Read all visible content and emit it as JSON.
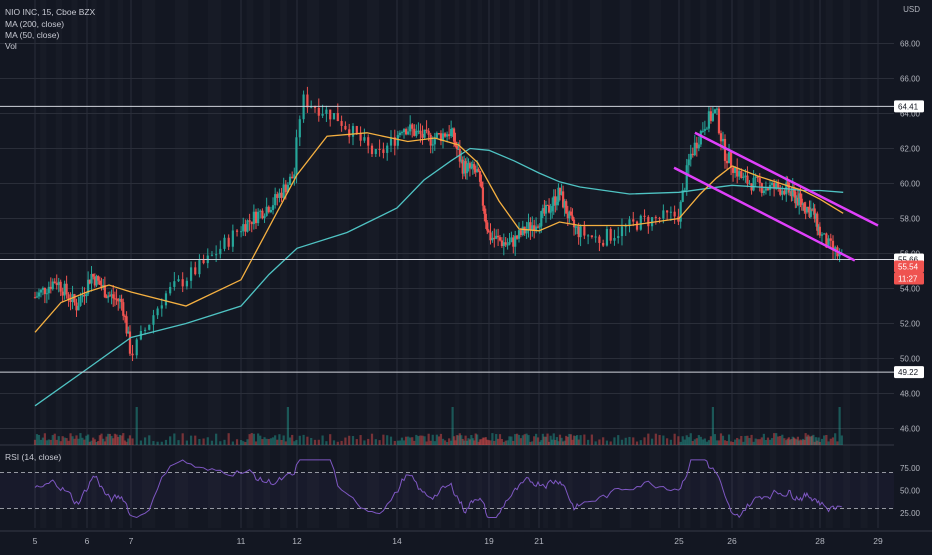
{
  "header": {
    "symbol_line": "NIO INC, 15, Cboe BZX",
    "ma200_label": "MA (200, close)",
    "ma50_label": "MA (50, close)",
    "vol_label": "Vol",
    "currency": "USD"
  },
  "rsi_panel": {
    "label": "RSI (14, close)",
    "ticks": [
      75.0,
      50.0,
      25.0
    ],
    "tick_labels": [
      "75.00",
      "50.00",
      "25.00"
    ],
    "upper_band": 70,
    "lower_band": 30,
    "color": "#7e57c2"
  },
  "colors": {
    "background": "#131722",
    "grid": "#2a2e39",
    "up": "#26a69a",
    "down": "#ef5350",
    "ma50": "#f5b041",
    "ma200": "#4fc3c3",
    "channel": "#e040fb",
    "hline": "#d1d4dc",
    "price_badge": "#ef5350"
  },
  "chart_data": {
    "type": "candlestick",
    "title": "NIO INC, 15, Cboe BZX",
    "ylim": [
      45,
      69
    ],
    "y_ticks": [
      46,
      48,
      50,
      52,
      54,
      56,
      58,
      60,
      62,
      64,
      66,
      68
    ],
    "y_tick_labels": [
      "46.00",
      "48.00",
      "50.00",
      "52.00",
      "54.00",
      "56.00",
      "58.00",
      "60.00",
      "62.00",
      "64.00",
      "66.00",
      "68.00"
    ],
    "x_tick_labels": [
      "5",
      "6",
      "7",
      "11",
      "12",
      "14",
      "19",
      "21",
      "25",
      "26",
      "28",
      "29"
    ],
    "x_ticks_day_index": [
      0,
      1,
      2,
      3,
      4,
      5,
      7,
      8,
      10,
      11,
      13,
      14
    ],
    "horizontal_levels": [
      {
        "value": 64.41,
        "label": "64.41"
      },
      {
        "value": 55.66,
        "label": "55.66"
      },
      {
        "value": 49.22,
        "label": "49.22"
      }
    ],
    "last_price": {
      "value": 55.54,
      "label": "55.54",
      "countdown": "11:27"
    },
    "price_path": [
      {
        "day": 0.0,
        "price": 53.5
      },
      {
        "day": 0.4,
        "price": 54.5
      },
      {
        "day": 0.8,
        "price": 53.0
      },
      {
        "day": 1.1,
        "price": 54.8
      },
      {
        "day": 1.5,
        "price": 53.6
      },
      {
        "day": 1.8,
        "price": 53.2
      },
      {
        "day": 2.0,
        "price": 50.2
      },
      {
        "day": 2.3,
        "price": 53.6
      },
      {
        "day": 2.7,
        "price": 55.6
      },
      {
        "day": 3.0,
        "price": 57.5
      },
      {
        "day": 3.6,
        "price": 59.0
      },
      {
        "day": 3.95,
        "price": 60.5
      },
      {
        "day": 4.05,
        "price": 64.8
      },
      {
        "day": 4.4,
        "price": 63.8
      },
      {
        "day": 4.8,
        "price": 61.5
      },
      {
        "day": 5.1,
        "price": 63.3
      },
      {
        "day": 5.6,
        "price": 62.5
      },
      {
        "day": 6.0,
        "price": 63.0
      },
      {
        "day": 6.3,
        "price": 61.0
      },
      {
        "day": 6.7,
        "price": 60.6
      },
      {
        "day": 7.0,
        "price": 57.0
      },
      {
        "day": 7.4,
        "price": 56.5
      },
      {
        "day": 7.8,
        "price": 57.5
      },
      {
        "day": 8.2,
        "price": 58.4
      },
      {
        "day": 8.5,
        "price": 59.5
      },
      {
        "day": 8.8,
        "price": 57.6
      },
      {
        "day": 9.2,
        "price": 56.8
      },
      {
        "day": 9.6,
        "price": 57.8
      },
      {
        "day": 10.0,
        "price": 58.2
      },
      {
        "day": 10.2,
        "price": 61.5
      },
      {
        "day": 10.5,
        "price": 63.5
      },
      {
        "day": 10.7,
        "price": 64.1
      },
      {
        "day": 10.85,
        "price": 61.8
      },
      {
        "day": 11.2,
        "price": 60.2
      },
      {
        "day": 11.6,
        "price": 59.8
      },
      {
        "day": 12.0,
        "price": 59.7
      },
      {
        "day": 12.4,
        "price": 59.0
      },
      {
        "day": 12.8,
        "price": 58.3
      },
      {
        "day": 13.1,
        "price": 56.6
      },
      {
        "day": 13.4,
        "price": 55.6
      }
    ],
    "ma50_path": [
      {
        "day": 0.0,
        "price": 51.5
      },
      {
        "day": 0.5,
        "price": 53.2
      },
      {
        "day": 1.0,
        "price": 53.8
      },
      {
        "day": 1.5,
        "price": 54.2
      },
      {
        "day": 2.0,
        "price": 53.8
      },
      {
        "day": 2.5,
        "price": 53.0
      },
      {
        "day": 3.0,
        "price": 54.5
      },
      {
        "day": 3.5,
        "price": 57.5
      },
      {
        "day": 4.0,
        "price": 60.5
      },
      {
        "day": 4.3,
        "price": 62.7
      },
      {
        "day": 4.7,
        "price": 62.9
      },
      {
        "day": 5.2,
        "price": 62.4
      },
      {
        "day": 5.7,
        "price": 62.6
      },
      {
        "day": 6.2,
        "price": 62.2
      },
      {
        "day": 6.7,
        "price": 61.2
      },
      {
        "day": 7.2,
        "price": 59.0
      },
      {
        "day": 7.6,
        "price": 57.4
      },
      {
        "day": 8.0,
        "price": 57.3
      },
      {
        "day": 8.5,
        "price": 57.8
      },
      {
        "day": 9.0,
        "price": 57.6
      },
      {
        "day": 9.5,
        "price": 57.6
      },
      {
        "day": 10.0,
        "price": 58.0
      },
      {
        "day": 10.4,
        "price": 59.4
      },
      {
        "day": 10.7,
        "price": 60.3
      },
      {
        "day": 11.0,
        "price": 61.0
      },
      {
        "day": 11.5,
        "price": 60.4
      },
      {
        "day": 12.0,
        "price": 59.9
      },
      {
        "day": 12.5,
        "price": 59.6
      },
      {
        "day": 13.0,
        "price": 59.1
      },
      {
        "day": 13.4,
        "price": 58.3
      }
    ],
    "ma200_path": [
      {
        "day": 0.0,
        "price": 47.3
      },
      {
        "day": 1.0,
        "price": 49.4
      },
      {
        "day": 2.0,
        "price": 51.2
      },
      {
        "day": 2.5,
        "price": 52.0
      },
      {
        "day": 3.0,
        "price": 53.0
      },
      {
        "day": 3.5,
        "price": 54.8
      },
      {
        "day": 4.0,
        "price": 56.3
      },
      {
        "day": 4.5,
        "price": 57.2
      },
      {
        "day": 5.0,
        "price": 58.6
      },
      {
        "day": 5.5,
        "price": 60.2
      },
      {
        "day": 6.0,
        "price": 61.3
      },
      {
        "day": 6.5,
        "price": 62.0
      },
      {
        "day": 7.0,
        "price": 61.9
      },
      {
        "day": 7.5,
        "price": 61.3
      },
      {
        "day": 8.0,
        "price": 60.6
      },
      {
        "day": 8.5,
        "price": 60.1
      },
      {
        "day": 9.0,
        "price": 59.8
      },
      {
        "day": 9.5,
        "price": 59.4
      },
      {
        "day": 10.0,
        "price": 59.5
      },
      {
        "day": 10.5,
        "price": 59.7
      },
      {
        "day": 11.0,
        "price": 59.9
      },
      {
        "day": 11.5,
        "price": 59.8
      },
      {
        "day": 12.0,
        "price": 59.7
      },
      {
        "day": 12.5,
        "price": 59.6
      },
      {
        "day": 13.0,
        "price": 59.6
      },
      {
        "day": 13.4,
        "price": 59.5
      }
    ],
    "channel_lines": [
      {
        "from": {
          "day": 10.3,
          "price": 62.9
        },
        "to": {
          "day": 14.0,
          "price": 57.6
        }
      },
      {
        "from": {
          "day": 9.95,
          "price": 60.9
        },
        "to": {
          "day": 13.6,
          "price": 55.6
        }
      }
    ],
    "volume_spikes_day": [
      2.05,
      3.85,
      6.05,
      10.65,
      13.35
    ]
  }
}
